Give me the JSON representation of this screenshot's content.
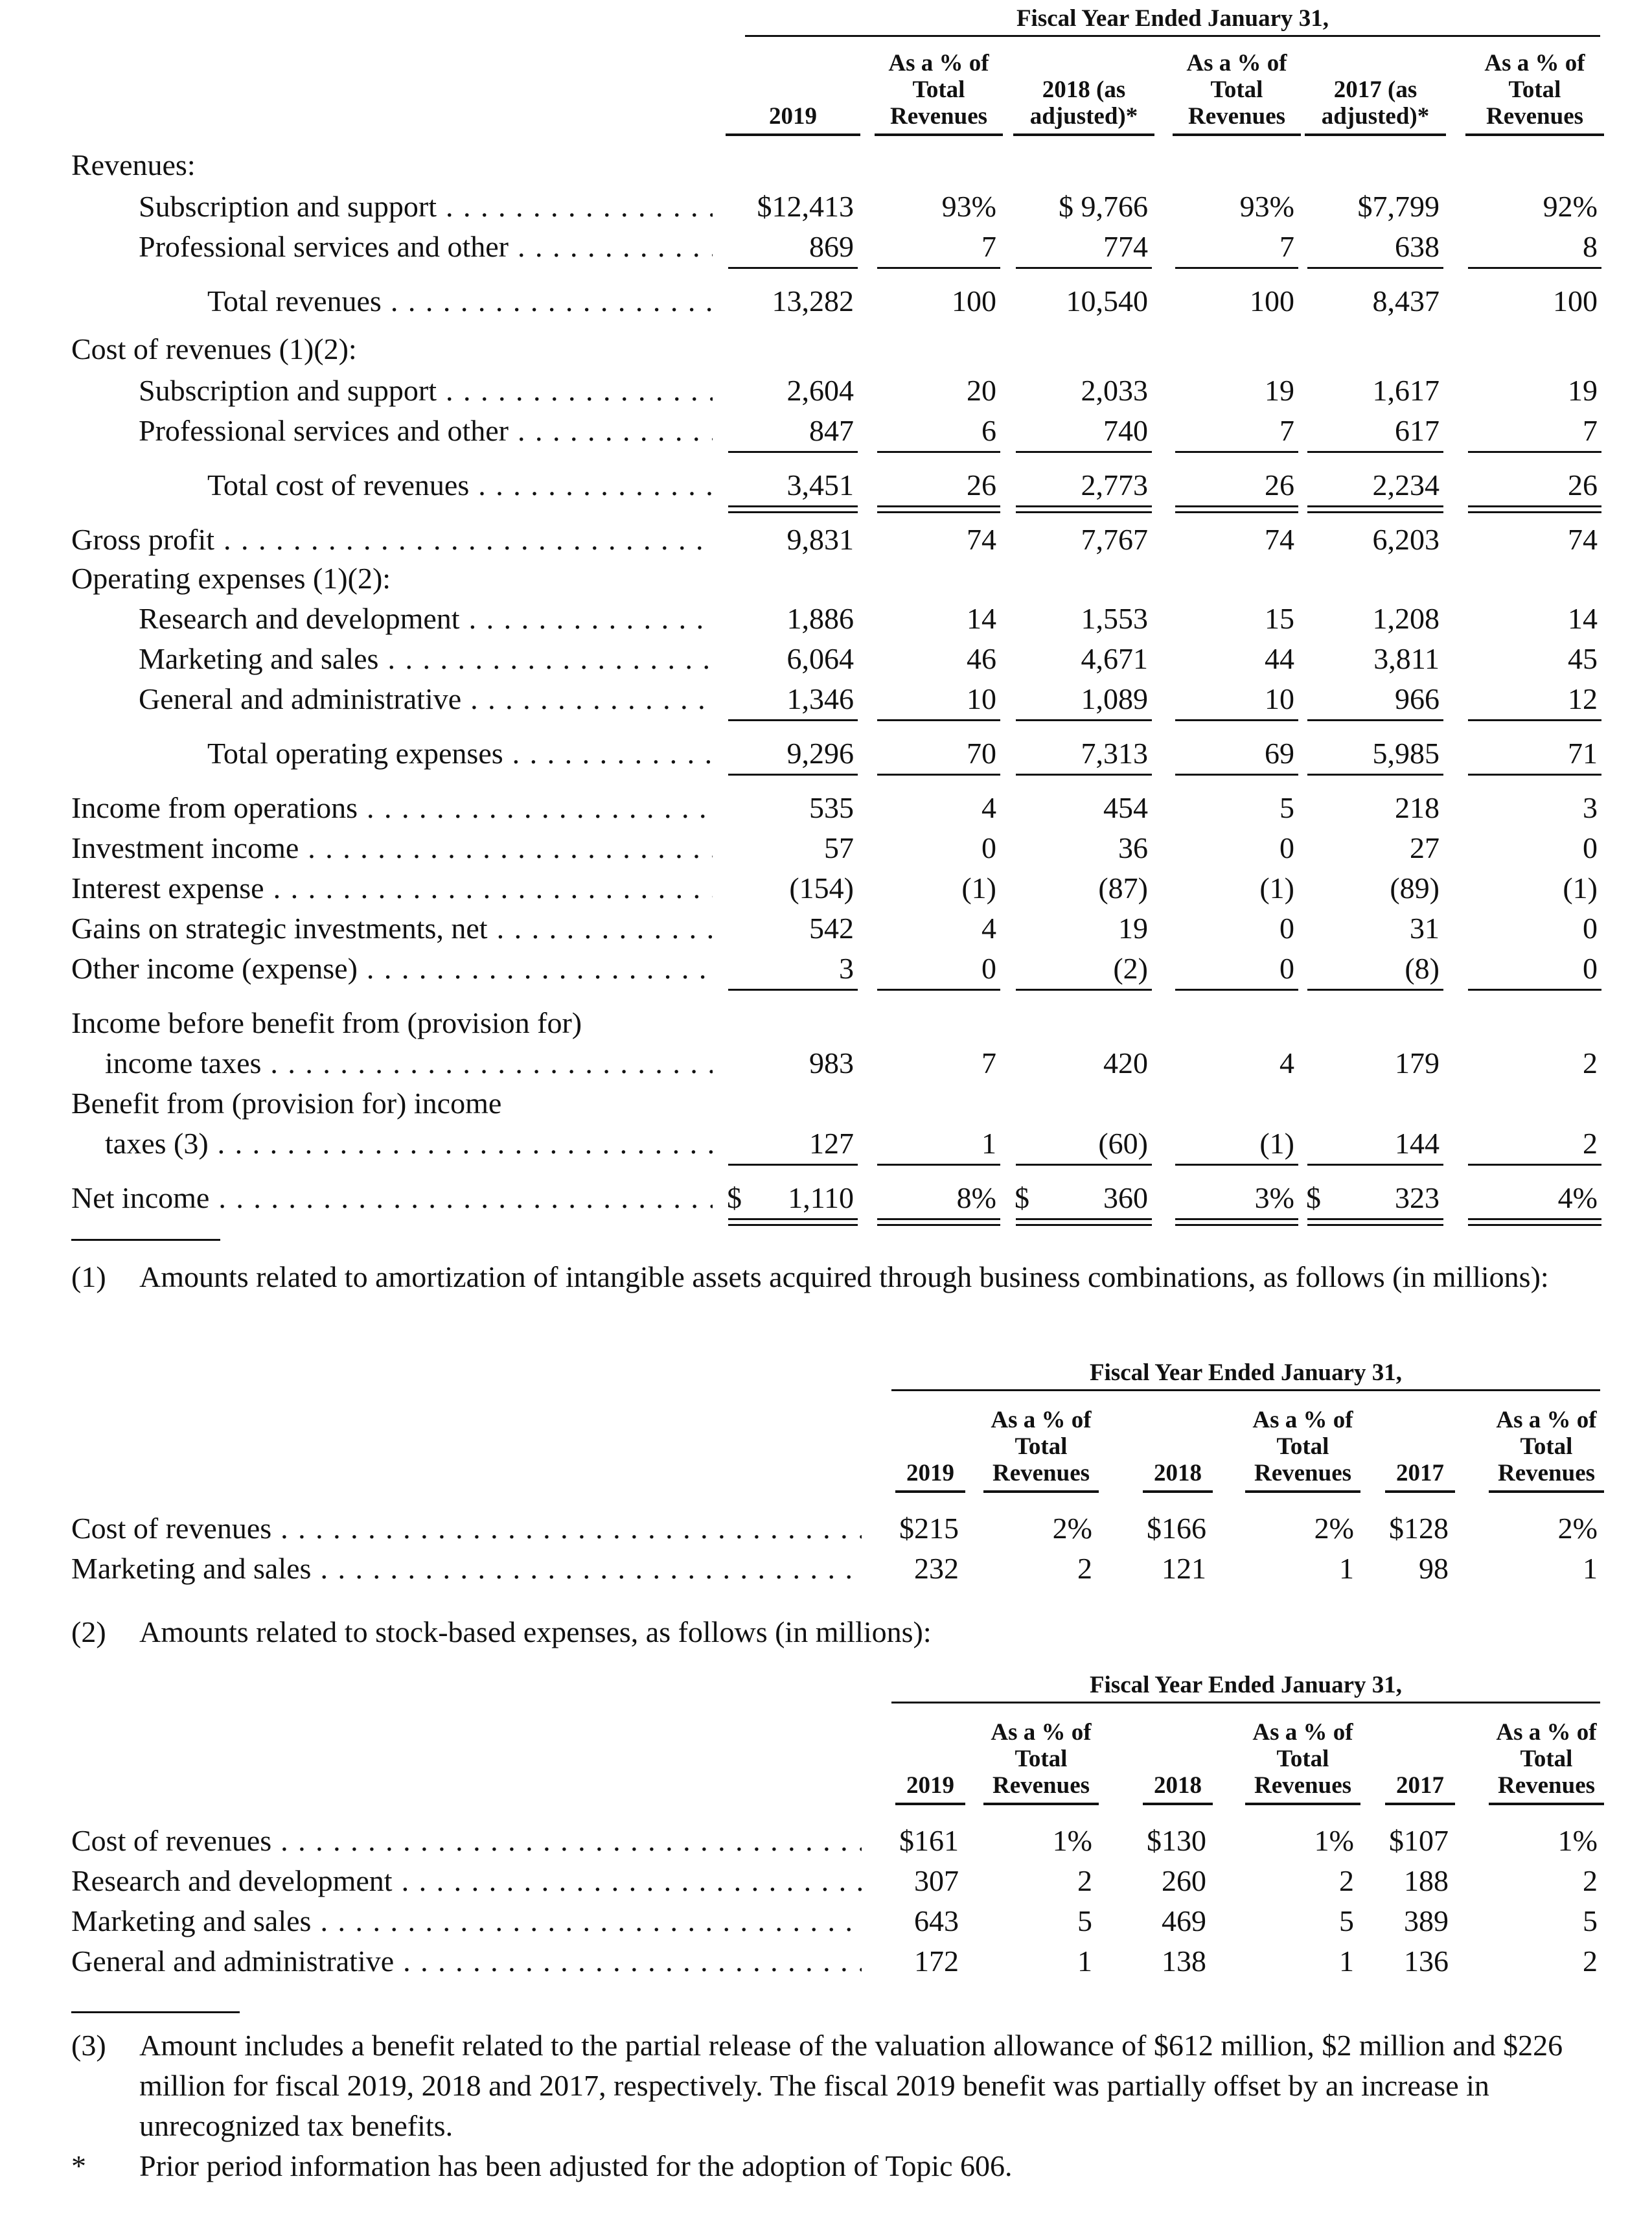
{
  "main_table": {
    "group_header": "Fiscal Year Ended January 31,",
    "col_headers": [
      "2019",
      "As a % of Total Revenues",
      "2018 (as adjusted)*",
      "As a % of Total Revenues",
      "2017 (as adjusted)*",
      "As a % of Total Revenues"
    ],
    "sections": {
      "revenues": "Revenues:",
      "cost_of_revenues": "Cost of revenues (1)(2):",
      "operating_expenses": "Operating expenses (1)(2):"
    },
    "rows": [
      {
        "label": "Subscription and support",
        "values": [
          "$12,413",
          "93%",
          "$ 9,766",
          "93%",
          "$7,799",
          "92%"
        ]
      },
      {
        "label": "Professional services and other",
        "values": [
          "869",
          "7",
          "774",
          "7",
          "638",
          "8"
        ]
      },
      {
        "label": "Total revenues",
        "values": [
          "13,282",
          "100",
          "10,540",
          "100",
          "8,437",
          "100"
        ]
      },
      {
        "label": "Subscription and support",
        "values": [
          "2,604",
          "20",
          "2,033",
          "19",
          "1,617",
          "19"
        ]
      },
      {
        "label": "Professional services and other",
        "values": [
          "847",
          "6",
          "740",
          "7",
          "617",
          "7"
        ]
      },
      {
        "label": "Total cost of revenues",
        "values": [
          "3,451",
          "26",
          "2,773",
          "26",
          "2,234",
          "26"
        ]
      },
      {
        "label": "Gross profit",
        "values": [
          "9,831",
          "74",
          "7,767",
          "74",
          "6,203",
          "74"
        ]
      },
      {
        "label": "Research and development",
        "values": [
          "1,886",
          "14",
          "1,553",
          "15",
          "1,208",
          "14"
        ]
      },
      {
        "label": "Marketing and sales",
        "values": [
          "6,064",
          "46",
          "4,671",
          "44",
          "3,811",
          "45"
        ]
      },
      {
        "label": "General and administrative",
        "values": [
          "1,346",
          "10",
          "1,089",
          "10",
          "966",
          "12"
        ]
      },
      {
        "label": "Total operating expenses",
        "values": [
          "9,296",
          "70",
          "7,313",
          "69",
          "5,985",
          "71"
        ]
      },
      {
        "label": "Income from operations",
        "values": [
          "535",
          "4",
          "454",
          "5",
          "218",
          "3"
        ]
      },
      {
        "label": "Investment income",
        "values": [
          "57",
          "0",
          "36",
          "0",
          "27",
          "0"
        ]
      },
      {
        "label": "Interest expense",
        "values": [
          "(154)",
          "(1)",
          "(87)",
          "(1)",
          "(89)",
          "(1)"
        ]
      },
      {
        "label": "Gains on strategic investments, net",
        "values": [
          "542",
          "4",
          "19",
          "0",
          "31",
          "0"
        ]
      },
      {
        "label": "Other income (expense)",
        "values": [
          "3",
          "0",
          "(2)",
          "0",
          "(8)",
          "0"
        ]
      },
      {
        "label_line1": "Income before benefit from (provision for)",
        "label": "income taxes",
        "values": [
          "983",
          "7",
          "420",
          "4",
          "179",
          "2"
        ]
      },
      {
        "label_line1": "Benefit from (provision for) income",
        "label": "taxes (3)",
        "values": [
          "127",
          "1",
          "(60)",
          "(1)",
          "144",
          "2"
        ]
      },
      {
        "label": "Net income",
        "currency": [
          "$",
          "$",
          "$"
        ],
        "values": [
          "1,110",
          "8%",
          "360",
          "3%",
          "323",
          "4%"
        ]
      }
    ]
  },
  "footnote_1": {
    "number": "(1)",
    "text": "Amounts related to amortization of intangible assets acquired through business combinations, as follows (in millions):"
  },
  "amortization_table": {
    "group_header": "Fiscal Year Ended January 31,",
    "col_headers": [
      "2019",
      "As a % of Total Revenues",
      "2018",
      "As a % of Total Revenues",
      "2017",
      "As a % of Total Revenues"
    ],
    "rows": [
      {
        "label": "Cost of revenues",
        "values": [
          "$215",
          "2%",
          "$166",
          "2%",
          "$128",
          "2%"
        ]
      },
      {
        "label": "Marketing and sales",
        "values": [
          "232",
          "2",
          "121",
          "1",
          "98",
          "1"
        ]
      }
    ]
  },
  "footnote_2": {
    "number": "(2)",
    "text": "Amounts related to stock-based expenses, as follows (in millions):"
  },
  "stock_table": {
    "group_header": "Fiscal Year Ended January 31,",
    "col_headers": [
      "2019",
      "As a % of Total Revenues",
      "2018",
      "As a % of Total Revenues",
      "2017",
      "As a % of Total Revenues"
    ],
    "rows": [
      {
        "label": "Cost of revenues",
        "values": [
          "$161",
          "1%",
          "$130",
          "1%",
          "$107",
          "1%"
        ]
      },
      {
        "label": "Research and development",
        "values": [
          "307",
          "2",
          "260",
          "2",
          "188",
          "2"
        ]
      },
      {
        "label": "Marketing and sales",
        "values": [
          "643",
          "5",
          "469",
          "5",
          "389",
          "5"
        ]
      },
      {
        "label": "General and administrative",
        "values": [
          "172",
          "1",
          "138",
          "1",
          "136",
          "2"
        ]
      }
    ]
  },
  "footnote_3": {
    "number": "(3)",
    "text": "Amount includes a benefit related to the partial release of the valuation allowance of $612 million, $2 million and $226 million for fiscal 2019, 2018 and 2017, respectively. The fiscal 2019 benefit was partially offset by an increase in unrecognized tax benefits."
  },
  "footnote_star": {
    "number": "*",
    "text": "Prior period information has been adjusted for the adoption of Topic 606."
  }
}
